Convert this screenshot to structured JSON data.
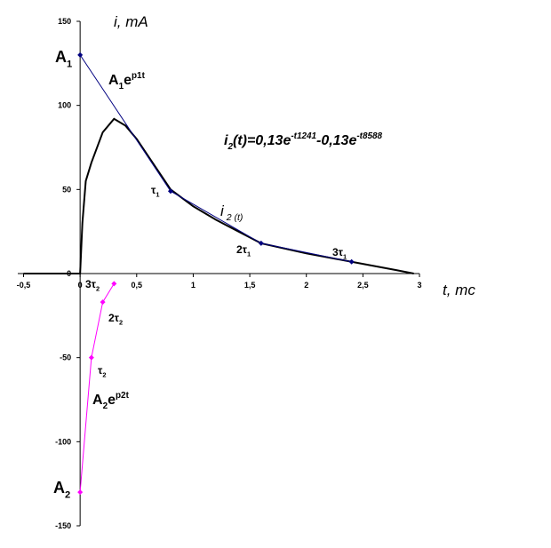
{
  "chart_data": {
    "type": "line",
    "xlim": [
      -0.5,
      3
    ],
    "ylim": [
      -150,
      150
    ],
    "xticks": [
      {
        "value": -0.5,
        "label": "-0,5"
      },
      0,
      {
        "value": 0.5,
        "label": "0,5"
      },
      1,
      {
        "value": 1.5,
        "label": "1,5"
      },
      2,
      {
        "value": 2.5,
        "label": "2,5"
      },
      3
    ],
    "yticks": [
      -150,
      -100,
      -50,
      0,
      50,
      100,
      150
    ],
    "series": [
      {
        "color": "#000000",
        "width": 2,
        "markers": false,
        "x": [
          -0.5,
          0,
          0.02,
          0.05,
          0.1,
          0.2,
          0.3,
          0.4,
          0.5,
          0.8,
          1.0,
          1.2,
          1.6,
          2.0,
          2.4,
          2.8,
          2.95
        ],
        "values": [
          0,
          0,
          30,
          55,
          66,
          84,
          92,
          88,
          80,
          50,
          40,
          32,
          18,
          12,
          7,
          2,
          0
        ]
      },
      {
        "color": "#000080",
        "width": 1,
        "markers": true,
        "x": [
          0,
          0.8,
          1.6,
          2.4
        ],
        "values": [
          130,
          49,
          18,
          7
        ]
      },
      {
        "color": "#ff00ff",
        "width": 1,
        "markers": true,
        "x": [
          0,
          0.1,
          0.2,
          0.3
        ],
        "values": [
          -130,
          -50,
          -17,
          -6
        ]
      }
    ],
    "annotations": [
      [
        [
          "i, mA",
          "n"
        ]
      ],
      [
        [
          "t, mc",
          "n"
        ]
      ],
      [
        [
          "A",
          "n"
        ],
        [
          "1",
          "sub"
        ]
      ],
      [
        [
          "A",
          "n"
        ],
        [
          "1",
          "sub"
        ],
        [
          "e",
          "n"
        ],
        [
          "p",
          "sup"
        ],
        [
          "1",
          "sup"
        ],
        [
          "t",
          "sup"
        ]
      ],
      [
        [
          "i",
          "n"
        ],
        [
          "2",
          "sub"
        ],
        [
          "(t)=0,13e",
          "n"
        ],
        [
          "-t1241",
          "sup"
        ],
        [
          "-0,13e",
          "n"
        ],
        [
          "-t8588",
          "sup"
        ]
      ],
      [
        [
          "τ",
          "n"
        ],
        [
          "1",
          "sub"
        ]
      ],
      [
        [
          "i",
          "n"
        ],
        [
          " 2 (t)",
          "sub"
        ]
      ],
      [
        [
          "2τ",
          "n"
        ],
        [
          "1",
          "sub"
        ]
      ],
      [
        [
          "3τ",
          "n"
        ],
        [
          "1",
          "sub"
        ]
      ],
      [
        [
          "3τ",
          "n"
        ],
        [
          "2",
          "sub"
        ]
      ],
      [
        [
          "2τ",
          "n"
        ],
        [
          "2",
          "sub"
        ]
      ],
      [
        [
          "τ",
          "n"
        ],
        [
          "2",
          "sub"
        ]
      ],
      [
        [
          "A",
          "n"
        ],
        [
          "2",
          "sub"
        ],
        [
          "e",
          "n"
        ],
        [
          "p",
          "sup"
        ],
        [
          "2",
          "sup"
        ],
        [
          "t",
          "sup"
        ]
      ],
      [
        [
          "A",
          "n"
        ],
        [
          "2",
          "sub"
        ]
      ]
    ]
  }
}
